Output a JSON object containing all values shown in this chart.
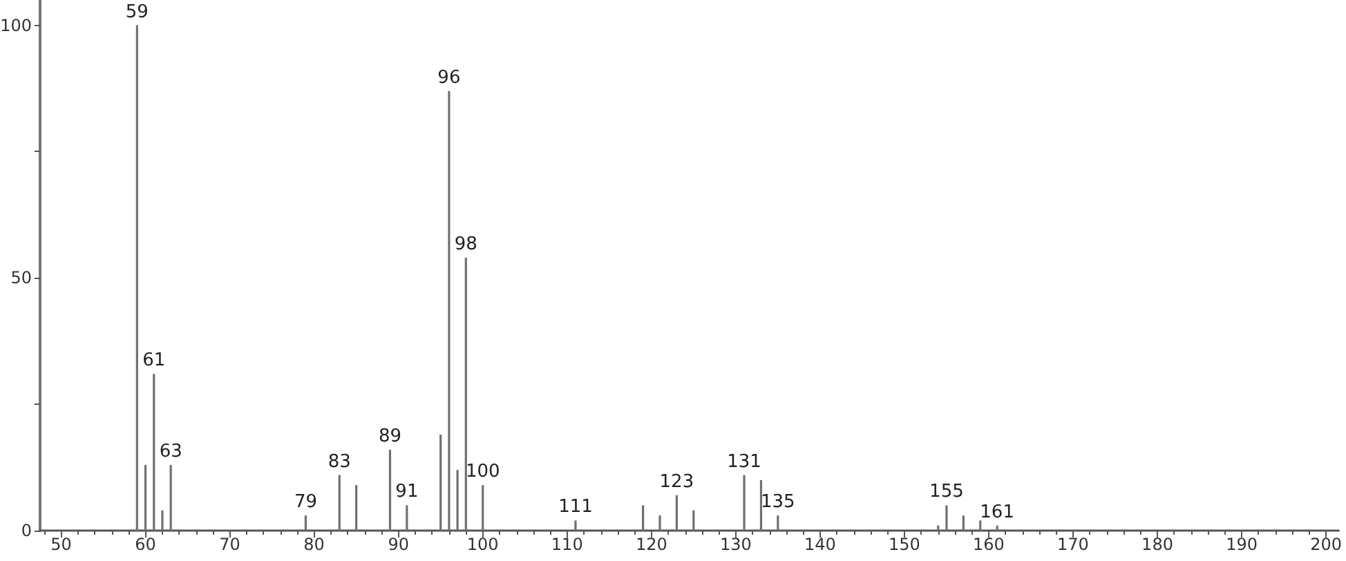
{
  "chart_data": {
    "type": "bar",
    "x": [
      59,
      60,
      61,
      62,
      63,
      79,
      83,
      85,
      89,
      91,
      95,
      96,
      97,
      98,
      100,
      111,
      119,
      121,
      123,
      125,
      131,
      133,
      135,
      154,
      155,
      157,
      159,
      161
    ],
    "values": [
      100,
      13,
      31,
      4,
      13,
      3,
      11,
      9,
      16,
      5,
      19,
      87,
      12,
      54,
      9,
      2,
      5,
      3,
      7,
      4,
      11,
      10,
      3,
      1,
      5,
      3,
      2,
      1
    ],
    "annotations": [
      {
        "text": "59",
        "x": 59,
        "y": 100
      },
      {
        "text": "61",
        "x": 61,
        "y": 31
      },
      {
        "text": "63",
        "x": 63,
        "y": 13
      },
      {
        "text": "79",
        "x": 79,
        "y": 3
      },
      {
        "text": "83",
        "x": 83,
        "y": 11
      },
      {
        "text": "89",
        "x": 89,
        "y": 16
      },
      {
        "text": "91",
        "x": 91,
        "y": 5
      },
      {
        "text": "96",
        "x": 96,
        "y": 87
      },
      {
        "text": "98",
        "x": 98,
        "y": 54
      },
      {
        "text": "100",
        "x": 100,
        "y": 9
      },
      {
        "text": "111",
        "x": 111,
        "y": 2
      },
      {
        "text": "123",
        "x": 123,
        "y": 7
      },
      {
        "text": "131",
        "x": 131,
        "y": 11
      },
      {
        "text": "135",
        "x": 135,
        "y": 3
      },
      {
        "text": "155",
        "x": 155,
        "y": 5
      },
      {
        "text": "161",
        "x": 161,
        "y": 1
      }
    ],
    "color": "#707070",
    "xlim": [
      47.5,
      201.5
    ],
    "xticks": [
      {
        "value": 48,
        "label": null
      },
      50,
      {
        "value": 52,
        "label": null
      },
      {
        "value": 54,
        "label": null
      },
      {
        "value": 56,
        "label": null
      },
      {
        "value": 58,
        "label": null
      },
      60,
      {
        "value": 62,
        "label": null
      },
      {
        "value": 64,
        "label": null
      },
      {
        "value": 66,
        "label": null
      },
      {
        "value": 68,
        "label": null
      },
      70,
      {
        "value": 72,
        "label": null
      },
      {
        "value": 74,
        "label": null
      },
      {
        "value": 76,
        "label": null
      },
      {
        "value": 78,
        "label": null
      },
      80,
      {
        "value": 82,
        "label": null
      },
      {
        "value": 84,
        "label": null
      },
      {
        "value": 86,
        "label": null
      },
      {
        "value": 88,
        "label": null
      },
      90,
      {
        "value": 92,
        "label": null
      },
      {
        "value": 94,
        "label": null
      },
      {
        "value": 96,
        "label": null
      },
      {
        "value": 98,
        "label": null
      },
      100,
      {
        "value": 102,
        "label": null
      },
      {
        "value": 104,
        "label": null
      },
      {
        "value": 106,
        "label": null
      },
      {
        "value": 108,
        "label": null
      },
      110,
      {
        "value": 112,
        "label": null
      },
      {
        "value": 114,
        "label": null
      },
      {
        "value": 116,
        "label": null
      },
      {
        "value": 118,
        "label": null
      },
      120,
      {
        "value": 122,
        "label": null
      },
      {
        "value": 124,
        "label": null
      },
      {
        "value": 126,
        "label": null
      },
      {
        "value": 128,
        "label": null
      },
      130,
      {
        "value": 132,
        "label": null
      },
      {
        "value": 134,
        "label": null
      },
      {
        "value": 136,
        "label": null
      },
      {
        "value": 138,
        "label": null
      },
      140,
      {
        "value": 142,
        "label": null
      },
      {
        "value": 144,
        "label": null
      },
      {
        "value": 146,
        "label": null
      },
      {
        "value": 148,
        "label": null
      },
      150,
      {
        "value": 152,
        "label": null
      },
      {
        "value": 154,
        "label": null
      },
      {
        "value": 156,
        "label": null
      },
      {
        "value": 158,
        "label": null
      },
      160,
      {
        "value": 162,
        "label": null
      },
      {
        "value": 164,
        "label": null
      },
      {
        "value": 166,
        "label": null
      },
      {
        "value": 168,
        "label": null
      },
      170,
      {
        "value": 172,
        "label": null
      },
      {
        "value": 174,
        "label": null
      },
      {
        "value": 176,
        "label": null
      },
      {
        "value": 178,
        "label": null
      },
      180,
      {
        "value": 182,
        "label": null
      },
      {
        "value": 184,
        "label": null
      },
      {
        "value": 186,
        "label": null
      },
      {
        "value": 188,
        "label": null
      },
      190,
      {
        "value": 192,
        "label": null
      },
      {
        "value": 194,
        "label": null
      },
      {
        "value": 196,
        "label": null
      },
      {
        "value": 198,
        "label": null
      },
      200
    ],
    "ylim": [
      0,
      105
    ],
    "yticks": [
      0,
      {
        "value": 25,
        "label": null
      },
      50,
      {
        "value": 75,
        "label": null
      },
      100
    ],
    "grid": false
  }
}
